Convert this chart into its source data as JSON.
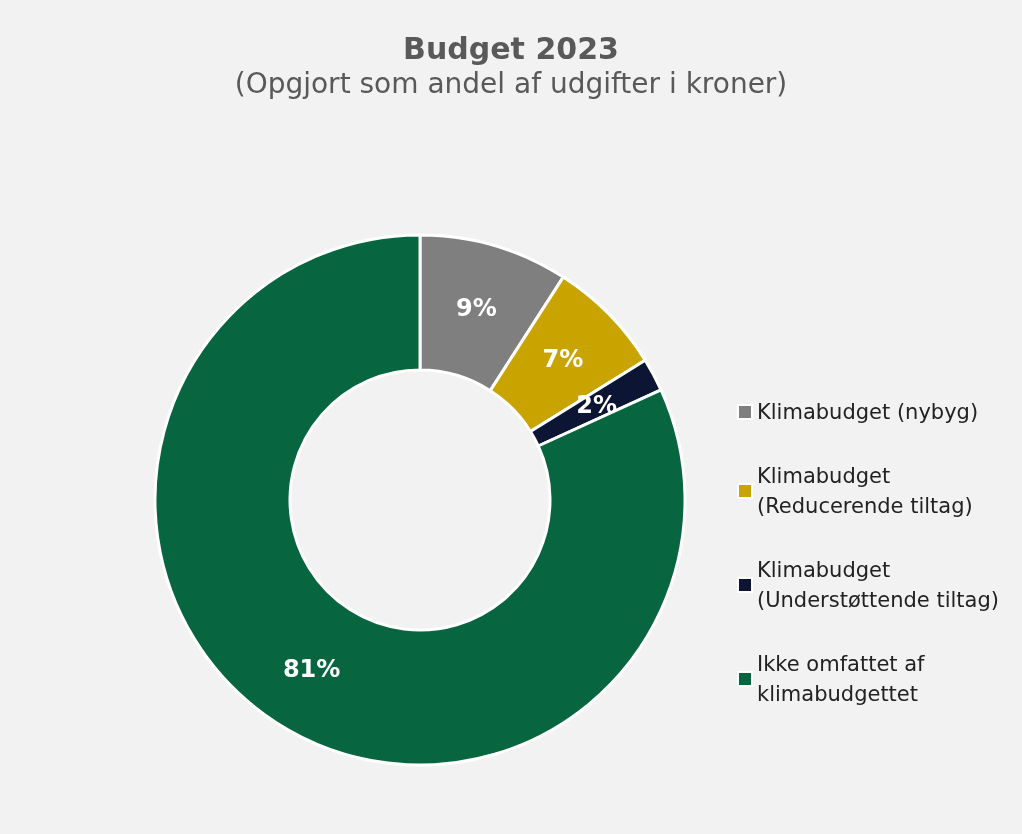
{
  "chart_data": {
    "type": "donut",
    "title": "Budget 2023",
    "subtitle": "(Opgjort som andel af udgifter i kroner)",
    "categories": [
      "Klimabudget (nybyg)",
      "Klimabudget (Reducerende tiltag)",
      "Klimabudget (Understøttende tiltag)",
      "Ikke omfattet af klimabudgettet"
    ],
    "values": [
      9,
      7,
      2,
      81
    ],
    "value_labels": [
      "9%",
      "7%",
      "2%",
      "81%"
    ],
    "colors": [
      "#7f7f7f",
      "#c9a300",
      "#0c1533",
      "#07663f"
    ],
    "legend": "right"
  }
}
